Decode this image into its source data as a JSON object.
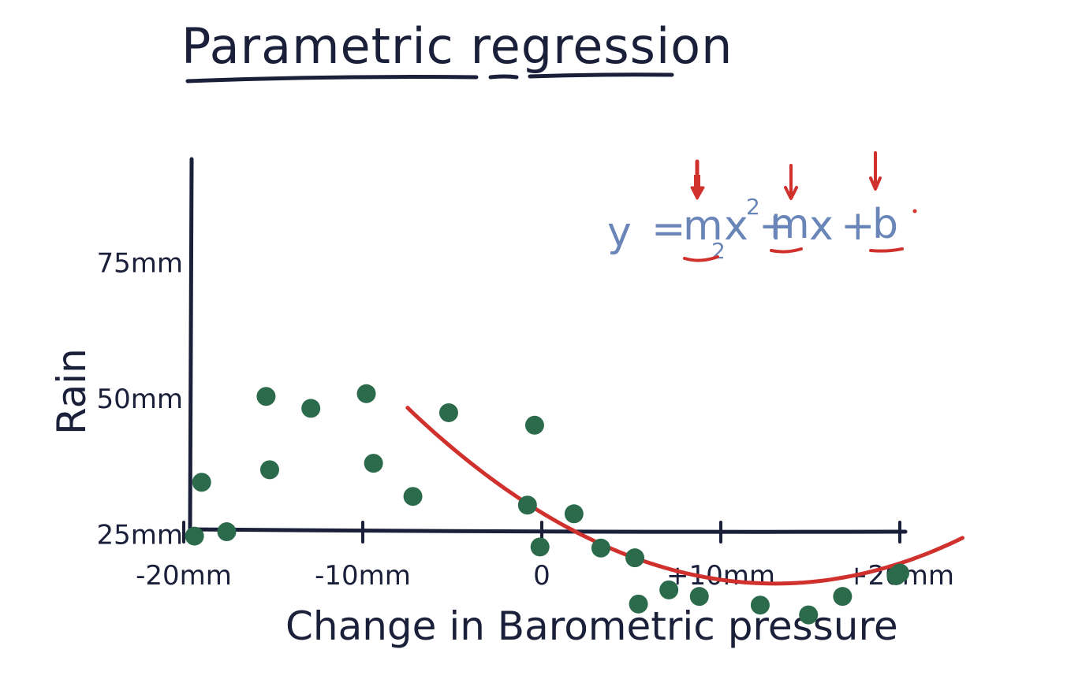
{
  "chart_data": {
    "type": "scatter",
    "title": "Parametric regression",
    "xlabel": "Change in Barometric pressure",
    "ylabel": "Rain",
    "xlim": [
      -22,
      22
    ],
    "ylim": [
      10,
      78
    ],
    "x_ticks": [
      {
        "value": -20,
        "label": "-20mm"
      },
      {
        "value": -10,
        "label": "-10mm"
      },
      {
        "value": 0,
        "label": "0"
      },
      {
        "value": 10,
        "label": "+10mm"
      },
      {
        "value": 20,
        "label": "+20mm"
      }
    ],
    "y_ticks": [
      {
        "value": 25,
        "label": "25mm"
      },
      {
        "value": 50,
        "label": "50mm"
      },
      {
        "value": 75,
        "label": "75mm"
      }
    ],
    "grid": false,
    "series": [
      {
        "type": "scatter",
        "color": "#2b6b4c",
        "points": [
          {
            "x": -19.4,
            "y": 24.7
          },
          {
            "x": -19.0,
            "y": 34.6
          },
          {
            "x": -17.6,
            "y": 25.5
          },
          {
            "x": -15.4,
            "y": 50.4
          },
          {
            "x": -15.2,
            "y": 36.9
          },
          {
            "x": -12.9,
            "y": 48.2
          },
          {
            "x": -9.8,
            "y": 50.9
          },
          {
            "x": -9.4,
            "y": 38.1
          },
          {
            "x": -7.2,
            "y": 32.0
          },
          {
            "x": -5.2,
            "y": 47.4
          },
          {
            "x": -0.4,
            "y": 45.1
          },
          {
            "x": -0.8,
            "y": 30.4
          },
          {
            "x": -0.1,
            "y": 22.7
          },
          {
            "x": 1.8,
            "y": 28.8
          },
          {
            "x": 3.3,
            "y": 22.5
          },
          {
            "x": 5.2,
            "y": 20.7
          },
          {
            "x": 5.4,
            "y": 12.2
          },
          {
            "x": 7.1,
            "y": 14.8
          },
          {
            "x": 8.8,
            "y": 13.6
          },
          {
            "x": 12.2,
            "y": 12.0
          },
          {
            "x": 14.9,
            "y": 10.2
          },
          {
            "x": 16.8,
            "y": 13.6
          },
          {
            "x": 19.8,
            "y": 17.4
          },
          {
            "x": 20.0,
            "y": 17.9
          }
        ]
      },
      {
        "type": "line",
        "color": "#d0312d",
        "fit": "quadratic",
        "x_range": [
          -7.5,
          23.5
        ],
        "coefficients": {
          "a": 0.0767,
          "b": -2.0,
          "c": 29.0
        }
      }
    ],
    "annotation": {
      "equation": {
        "lhs": "y",
        "eq": "=",
        "m2": "m",
        "m2_sub": "2",
        "x2": "x",
        "x2_sup": "2",
        "plus1": "+",
        "m": "m",
        "x": "x",
        "plus2": "+",
        "b": "b"
      },
      "equation_color": "#6a86b8",
      "highlight_color": "#d0312d"
    }
  }
}
